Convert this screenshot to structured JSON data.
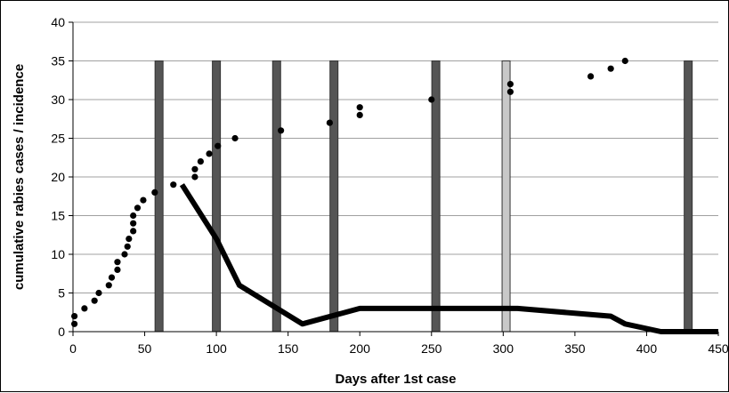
{
  "chart_data": {
    "type": "scatter",
    "xlabel": "Days after 1st case",
    "ylabel": "cumulative rabies cases / incidence",
    "xlim": [
      0,
      450
    ],
    "ylim": [
      0,
      40
    ],
    "x_ticks": [
      0,
      50,
      100,
      150,
      200,
      250,
      300,
      350,
      400,
      450
    ],
    "y_ticks": [
      0,
      5,
      10,
      15,
      20,
      25,
      30,
      35,
      40
    ],
    "grid": "horizontal",
    "bars": [
      {
        "x": 60,
        "value": 35,
        "color": "#555555"
      },
      {
        "x": 100,
        "value": 35,
        "color": "#555555"
      },
      {
        "x": 142,
        "value": 35,
        "color": "#555555"
      },
      {
        "x": 182,
        "value": 35,
        "color": "#555555"
      },
      {
        "x": 253,
        "value": 35,
        "color": "#555555"
      },
      {
        "x": 302,
        "value": 35,
        "color": "#c8c8c8"
      },
      {
        "x": 429,
        "value": 35,
        "color": "#555555"
      }
    ],
    "series": [
      {
        "type": "scatter",
        "color": "#000000",
        "points": [
          [
            1,
            1
          ],
          [
            1,
            2
          ],
          [
            8,
            3
          ],
          [
            15,
            4
          ],
          [
            18,
            5
          ],
          [
            25,
            6
          ],
          [
            27,
            7
          ],
          [
            31,
            8
          ],
          [
            31,
            9
          ],
          [
            36,
            10
          ],
          [
            38,
            11
          ],
          [
            39,
            12
          ],
          [
            42,
            13
          ],
          [
            42,
            14
          ],
          [
            42,
            15
          ],
          [
            45,
            16
          ],
          [
            49,
            17
          ],
          [
            57,
            18
          ],
          [
            70,
            19
          ],
          [
            85,
            20
          ],
          [
            85,
            21
          ],
          [
            89,
            22
          ],
          [
            95,
            23
          ],
          [
            101,
            24
          ],
          [
            113,
            25
          ],
          [
            145,
            26
          ],
          [
            179,
            27
          ],
          [
            200,
            28
          ],
          [
            200,
            29
          ],
          [
            250,
            30
          ],
          [
            305,
            31
          ],
          [
            305,
            32
          ],
          [
            361,
            33
          ],
          [
            375,
            34
          ],
          [
            385,
            35
          ]
        ]
      },
      {
        "type": "line",
        "color": "#000000",
        "points": [
          [
            76,
            19
          ],
          [
            100,
            12
          ],
          [
            116,
            6
          ],
          [
            160,
            1
          ],
          [
            200,
            3
          ],
          [
            310,
            3
          ],
          [
            375,
            2
          ],
          [
            385,
            1
          ],
          [
            410,
            0
          ],
          [
            450,
            0
          ]
        ]
      }
    ]
  }
}
